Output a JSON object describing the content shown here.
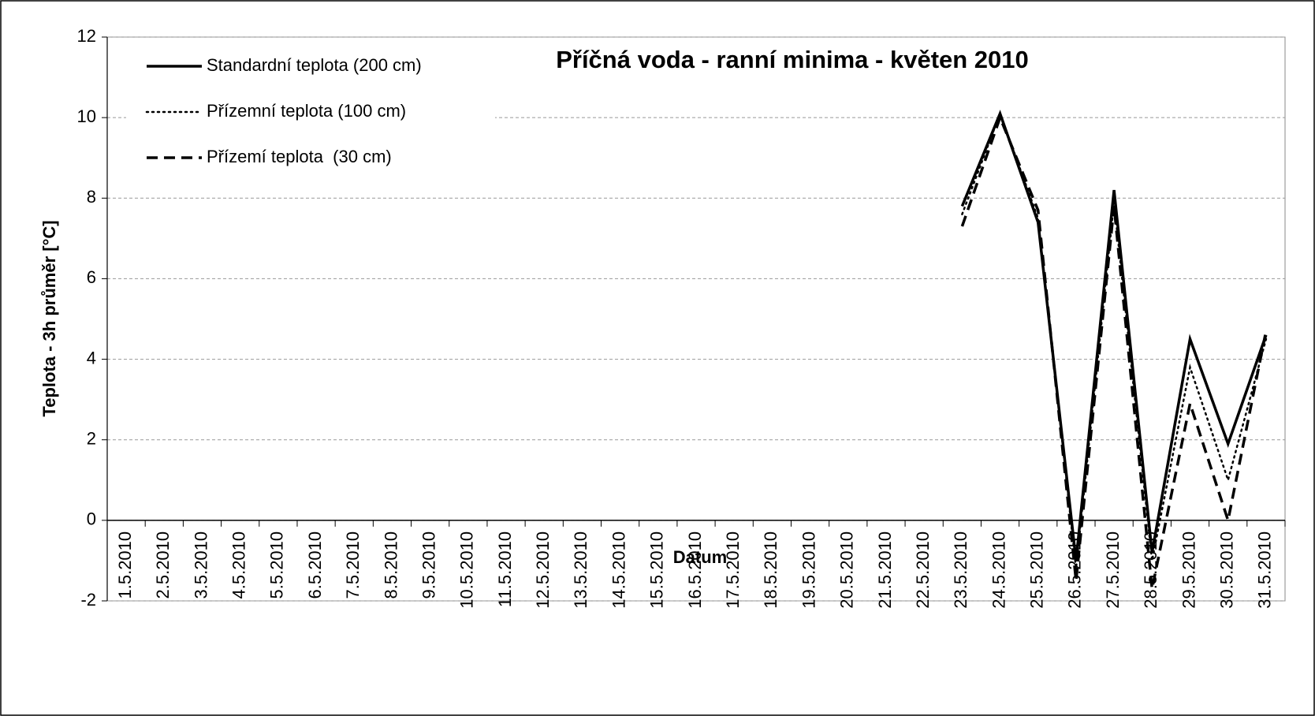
{
  "chart_data": {
    "type": "line",
    "title": "Příčná voda - ranní minima - květen 2010",
    "x_label": "Datum",
    "y_label": "Teplota - 3h průměr [°C]",
    "categories": [
      "1.5.2010",
      "2.5.2010",
      "3.5.2010",
      "4.5.2010",
      "5.5.2010",
      "6.5.2010",
      "7.5.2010",
      "8.5.2010",
      "9.5.2010",
      "10.5.2010",
      "11.5.2010",
      "12.5.2010",
      "13.5.2010",
      "14.5.2010",
      "15.5.2010",
      "16.5.2010",
      "17.5.2010",
      "18.5.2010",
      "19.5.2010",
      "20.5.2010",
      "21.5.2010",
      "22.5.2010",
      "23.5.2010",
      "24.5.2010",
      "25.5.2010",
      "26.5.2010",
      "27.5.2010",
      "28.5.2010",
      "29.5.2010",
      "30.5.2010",
      "31.5.2010"
    ],
    "series": [
      {
        "name": "Standardní teplota (200 cm)",
        "color": "#000000",
        "linestyle": "solid",
        "values": [
          null,
          null,
          null,
          null,
          null,
          null,
          null,
          null,
          null,
          null,
          null,
          null,
          null,
          null,
          null,
          null,
          null,
          null,
          null,
          null,
          null,
          null,
          7.8,
          10.1,
          7.4,
          -1.0,
          8.2,
          -0.8,
          4.5,
          1.9,
          4.6
        ]
      },
      {
        "name": "Přízemní teplota (100 cm)",
        "color": "#000000",
        "linestyle": "dotted",
        "values": [
          null,
          null,
          null,
          null,
          null,
          null,
          null,
          null,
          null,
          null,
          null,
          null,
          null,
          null,
          null,
          null,
          null,
          null,
          null,
          null,
          null,
          null,
          7.6,
          10.1,
          7.5,
          -1.2,
          7.9,
          -1.0,
          3.8,
          1.0,
          4.5
        ]
      },
      {
        "name": "Přízemí teplota  (30 cm)",
        "color": "#000000",
        "linestyle": "dashed",
        "values": [
          null,
          null,
          null,
          null,
          null,
          null,
          null,
          null,
          null,
          null,
          null,
          null,
          null,
          null,
          null,
          null,
          null,
          null,
          null,
          null,
          null,
          null,
          7.3,
          10.0,
          7.7,
          -1.5,
          7.8,
          -1.7,
          2.9,
          0.0,
          4.7
        ]
      }
    ],
    "ylim": [
      -2,
      12
    ],
    "yticks": [
      -2,
      0,
      2,
      4,
      6,
      8,
      10,
      12
    ],
    "grid": true,
    "legend": "upper-left"
  }
}
